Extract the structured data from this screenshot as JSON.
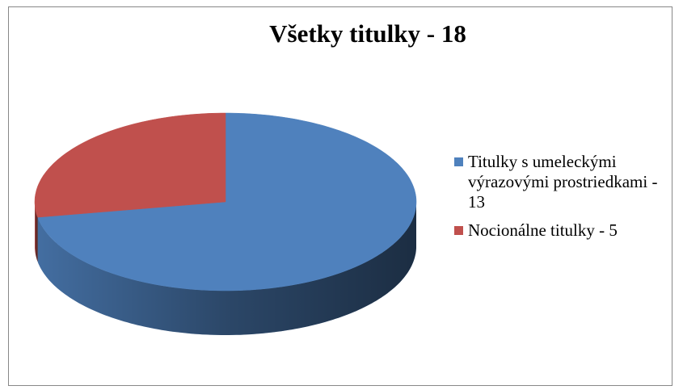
{
  "chart_data": {
    "type": "pie",
    "title": "Všetky titulky - 18",
    "categories": [
      "Titulky s umeleckými výrazovými prostriedkami - 13",
      "Nocionálne titulky - 5"
    ],
    "values": [
      13,
      5
    ],
    "colors": [
      "#4f81bd",
      "#c0504d"
    ],
    "legend": "right"
  }
}
